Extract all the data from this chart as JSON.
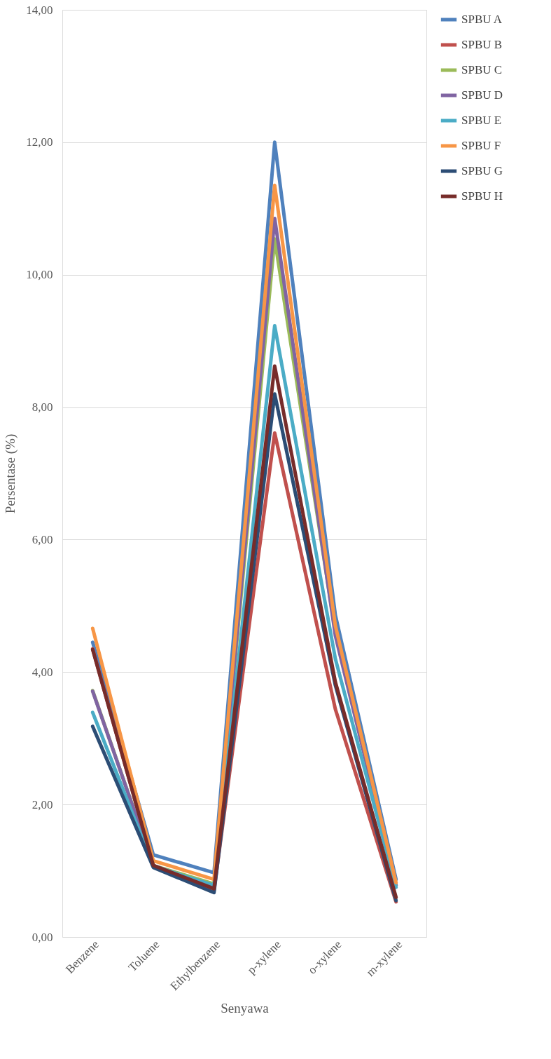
{
  "chart_data": {
    "type": "line",
    "xlabel": "Senyawa",
    "ylabel": "Persentase (%)",
    "categories": [
      "Benzene",
      "Toluene",
      "Ethylbenzene",
      "p-xylene",
      "o-xylene",
      "m-xylene"
    ],
    "series": [
      {
        "name": "SPBU A",
        "color": "#4f81bd",
        "values": [
          4.45,
          1.24,
          0.97,
          12.0,
          4.86,
          0.87
        ]
      },
      {
        "name": "SPBU B",
        "color": "#c0504d",
        "values": [
          4.35,
          1.08,
          0.7,
          7.61,
          3.44,
          0.53
        ]
      },
      {
        "name": "SPBU C",
        "color": "#9bbb59",
        "values": [
          3.72,
          1.08,
          0.8,
          10.54,
          4.6,
          0.78
        ]
      },
      {
        "name": "SPBU D",
        "color": "#8064a2",
        "values": [
          3.71,
          1.08,
          0.75,
          10.85,
          4.55,
          0.78
        ]
      },
      {
        "name": "SPBU E",
        "color": "#4bacc6",
        "values": [
          3.39,
          1.07,
          0.78,
          9.23,
          4.2,
          0.75
        ]
      },
      {
        "name": "SPBU F",
        "color": "#f79646",
        "values": [
          4.66,
          1.15,
          0.87,
          11.35,
          4.7,
          0.82
        ]
      },
      {
        "name": "SPBU G",
        "color": "#2c4d75",
        "values": [
          3.18,
          1.05,
          0.67,
          8.2,
          3.8,
          0.55
        ]
      },
      {
        "name": "SPBU H",
        "color": "#772c2a",
        "values": [
          4.34,
          1.08,
          0.73,
          8.62,
          3.85,
          0.6
        ]
      }
    ],
    "ylim": [
      0,
      14
    ],
    "yticks": [
      {
        "value": 0,
        "label": "0,00"
      },
      {
        "value": 2,
        "label": "2,00"
      },
      {
        "value": 4,
        "label": "4,00"
      },
      {
        "value": 6,
        "label": "6,00"
      },
      {
        "value": 8,
        "label": "8,00"
      },
      {
        "value": 10,
        "label": "10,00"
      },
      {
        "value": 12,
        "label": "12,00"
      },
      {
        "value": 14,
        "label": "14,00"
      }
    ],
    "grid": "y",
    "legend": "right",
    "marker": "none",
    "line_style": "solid"
  }
}
